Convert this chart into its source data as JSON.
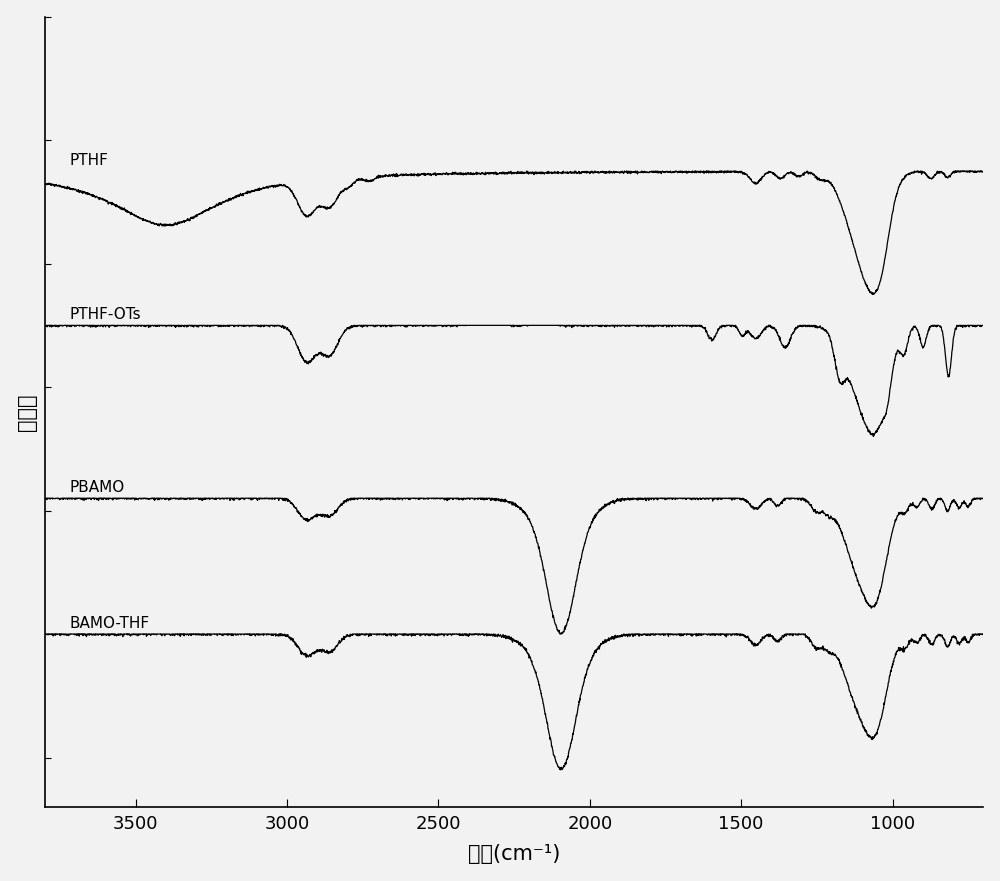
{
  "title": "",
  "xlabel": "波数(cm⁻¹)",
  "ylabel": "透过率",
  "x_min": 3800,
  "x_max": 700,
  "background_color": "#f2f2f2",
  "labels": [
    "PTHF",
    "PTHF-OTs",
    "PBAMO",
    "BAMO-THF"
  ],
  "offsets": [
    0.75,
    0.5,
    0.22,
    0.0
  ],
  "figsize": [
    10.0,
    8.81
  ],
  "dpi": 100,
  "linewidth": 0.9,
  "tick_fontsize": 13,
  "label_fontsize": 11,
  "axis_label_fontsize": 15
}
